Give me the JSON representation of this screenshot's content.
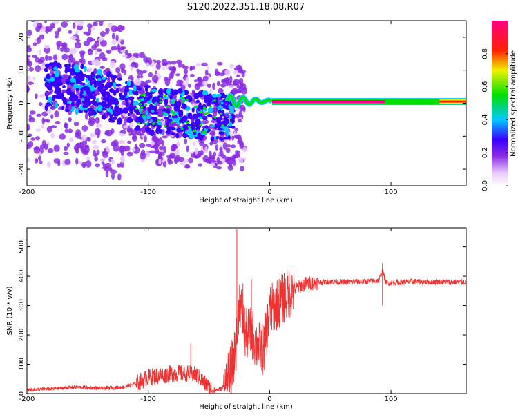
{
  "title": "S120.2022.351.18.08.R07",
  "chart_data": [
    {
      "type": "heatmap",
      "xlabel": "Height of straight line (km)",
      "ylabel": "Frequency (Hz)",
      "xlim": [
        -200,
        162
      ],
      "ylim": [
        -25,
        25
      ],
      "xticks": [
        -200,
        -100,
        0,
        100
      ],
      "yticks": [
        -20,
        -10,
        0,
        10,
        20
      ],
      "grid": false,
      "colorbar": {
        "label": "Normalized spectral amplitude",
        "range": [
          0,
          1
        ],
        "ticks": [
          0,
          0.2,
          0.4,
          0.6,
          0.8
        ],
        "tick_labels": [
          "0.0",
          "0.2",
          "0.4",
          "0.6",
          "0.8"
        ],
        "colormap": "rainbow (white-violet-blue-cyan-green-yellow-red-magenta)"
      },
      "features": {
        "scatter_region_x": [
          -200,
          -40
        ],
        "scatter_center_frequency": [
          [
            -200,
            6
          ],
          [
            -150,
            4
          ],
          [
            -100,
            -2
          ],
          [
            -50,
            -4
          ]
        ],
        "transition_x": [
          -35,
          2
        ],
        "carrier_line_x": [
          2,
          162
        ],
        "carrier_frequency": 0.5,
        "carrier_amplitude": 0.9
      }
    },
    {
      "type": "line",
      "xlabel": "Height of straight line (km)",
      "ylabel": "SNR (10 * v/v)",
      "xlim": [
        -200,
        162
      ],
      "ylim": [
        0,
        565
      ],
      "xticks": [
        -200,
        -100,
        0,
        100
      ],
      "yticks": [
        0,
        100,
        200,
        300,
        400,
        500
      ],
      "grid": false,
      "series": [
        {
          "color": "#ee3333",
          "x": [
            -200,
            -180,
            -160,
            -140,
            -120,
            -110,
            -100,
            -90,
            -80,
            -70,
            -60,
            -50,
            -45,
            -40,
            -35,
            -30,
            -27,
            -25,
            -22,
            -20,
            -15,
            -10,
            -5,
            0,
            5,
            10,
            15,
            20,
            25,
            30,
            40,
            50,
            60,
            70,
            80,
            90,
            93,
            96,
            100,
            110,
            120,
            130,
            140,
            150,
            162
          ],
          "y": [
            12,
            16,
            22,
            18,
            22,
            35,
            55,
            62,
            68,
            70,
            62,
            20,
            12,
            15,
            40,
            110,
            180,
            330,
            250,
            200,
            210,
            160,
            150,
            280,
            300,
            320,
            340,
            355,
            365,
            375,
            378,
            382,
            380,
            381,
            382,
            385,
            420,
            378,
            378,
            380,
            382,
            380,
            381,
            380,
            380
          ],
          "peaks": [
            [
              -27,
              560
            ],
            [
              -22,
              375
            ],
            [
              -15,
              390
            ],
            [
              12,
              410
            ],
            [
              93,
              445
            ],
            [
              93,
              300
            ],
            [
              -65,
              170
            ]
          ]
        }
      ]
    }
  ]
}
